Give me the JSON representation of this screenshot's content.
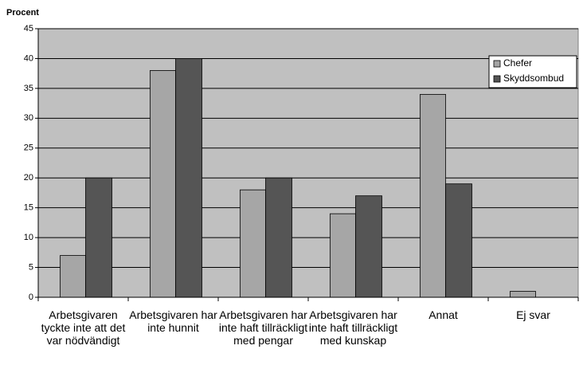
{
  "chart_data": {
    "type": "bar",
    "y_axis_label": "Procent",
    "categories": [
      "Arbetsgivaren tyckte inte att det var nödvändigt",
      "Arbetsgivaren har inte hunnit",
      "Arbetsgivaren har inte haft tillräckligt med pengar",
      "Arbetsgivaren har inte haft tillräckligt med kunskap",
      "Annat",
      "Ej svar"
    ],
    "series": [
      {
        "name": "Chefer",
        "color": "#a6a6a6",
        "values": [
          7,
          38,
          18,
          14,
          34,
          1
        ]
      },
      {
        "name": "Skyddsombud",
        "color": "#555555",
        "values": [
          20,
          40,
          20,
          17,
          19,
          0
        ]
      }
    ],
    "ylim": [
      0,
      45
    ],
    "yticks": [
      0,
      5,
      10,
      15,
      20,
      25,
      30,
      35,
      40,
      45
    ],
    "grid": true,
    "legend": "upper right"
  }
}
